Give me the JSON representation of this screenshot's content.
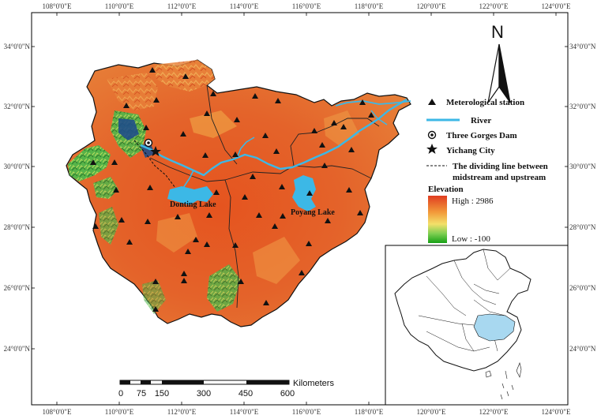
{
  "map": {
    "top_ticks": [
      "108°0'0\"E",
      "110°0'0\"E",
      "112°0'0\"E",
      "114°0'0\"E",
      "116°0'0\"E",
      "118°0'0\"E",
      "120°0'0\"E",
      "122°0'0\"E",
      "124°0'0\"E"
    ],
    "bottom_ticks": [
      "108°0'0\"E",
      "110°0'0\"E",
      "112°0'0\"E",
      "114°0'0\"E",
      "116°0'0\"E",
      "118°0'0\"E",
      "120°0'0\"E",
      "122°0'0\"E",
      "124°0'0\"E"
    ],
    "left_ticks": [
      "34°0'0\"N",
      "32°0'0\"N",
      "30°0'0\"N",
      "28°0'0\"N",
      "26°0'0\"N",
      "24°0'0\"N"
    ],
    "right_ticks": [
      "34°0'0\"N",
      "32°0'0\"N",
      "30°0'0\"N",
      "28°0'0\"N",
      "26°0'0\"N",
      "24°0'0\"N"
    ],
    "north_label": "N",
    "lakes": {
      "dongting": "Donting Lake",
      "poyang": "Poyang Lake"
    }
  },
  "legend": {
    "station": "Meterological station",
    "river": "River",
    "dam": "Three Gorges Dam",
    "city": "Yichang City",
    "divide_line1": "The dividing line between",
    "divide_line2": "midstream and upstream",
    "elevation_title": "Elevation",
    "high": "High : 2986",
    "low": "Low : -100"
  },
  "scale_bar": {
    "unit": "Kilometers",
    "labels": [
      "0",
      "75",
      "150",
      "300",
      "450",
      "600"
    ]
  },
  "colors": {
    "elev_high": "#d93a1a",
    "elev_mid": "#f0a040",
    "elev_low": "#2e9a2e",
    "river": "#3cb8e6",
    "inset_highlight": "#a8d8f0"
  }
}
